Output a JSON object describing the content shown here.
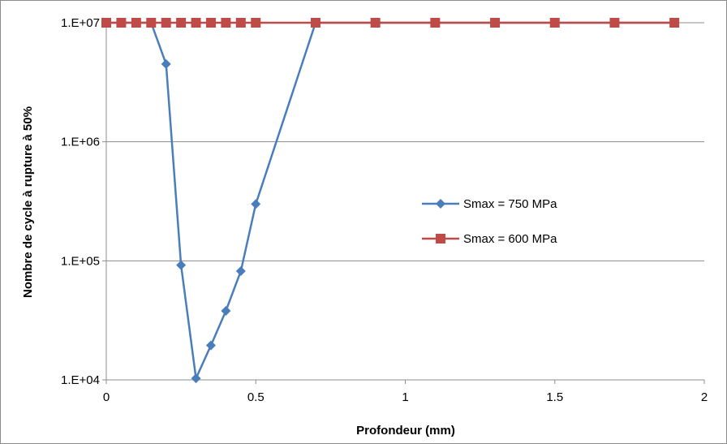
{
  "chart_data": {
    "type": "line",
    "title": "",
    "xlabel": "Profondeur (mm)",
    "ylabel": "Nombre de cycle à rupture à 50%",
    "xlim": [
      0,
      2
    ],
    "ylim": [
      10000,
      10000000
    ],
    "yscale": "log",
    "grid": true,
    "legend_position": "right",
    "x_ticks": [
      0,
      0.5,
      1,
      1.5,
      2
    ],
    "x_tick_labels": [
      "0",
      "0.5",
      "1",
      "1.5",
      "2"
    ],
    "y_ticks": [
      10000,
      100000,
      1000000,
      10000000
    ],
    "y_tick_labels": [
      "1.E+04",
      "1.E+05",
      "1.E+06",
      "1.E+07"
    ],
    "series": [
      {
        "name": "Smax = 750 MPa",
        "color": "#4a7ebb",
        "marker": "diamond",
        "x": [
          0,
          0.05,
          0.1,
          0.15,
          0.2,
          0.25,
          0.3,
          0.35,
          0.4,
          0.45,
          0.5,
          0.7,
          0.9,
          1.1,
          1.3,
          1.5,
          1.7,
          1.9
        ],
        "y": [
          10000000,
          10000000,
          10000000,
          10000000,
          4500000,
          92000,
          10300,
          19500,
          38000,
          82000,
          300000,
          10000000,
          10000000,
          10000000,
          10000000,
          10000000,
          10000000,
          10000000
        ]
      },
      {
        "name": "Smax = 600 MPa",
        "color": "#be4b48",
        "marker": "square",
        "x": [
          0,
          0.05,
          0.1,
          0.15,
          0.2,
          0.25,
          0.3,
          0.35,
          0.4,
          0.45,
          0.5,
          0.7,
          0.9,
          1.1,
          1.3,
          1.5,
          1.7,
          1.9
        ],
        "y": [
          10000000,
          10000000,
          10000000,
          10000000,
          10000000,
          10000000,
          10000000,
          10000000,
          10000000,
          10000000,
          10000000,
          10000000,
          10000000,
          10000000,
          10000000,
          10000000,
          10000000,
          10000000
        ]
      }
    ]
  }
}
